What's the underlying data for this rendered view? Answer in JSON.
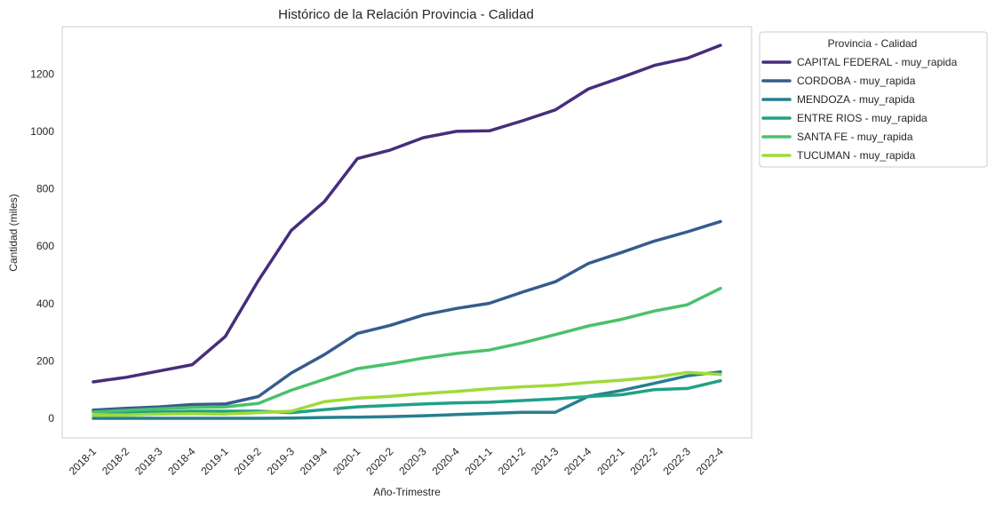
{
  "chart_data": {
    "type": "line",
    "title": "Histórico de la Relación Provincia - Calidad",
    "xlabel": "Año-Trimestre",
    "ylabel": "Cantidad (miles)",
    "categories": [
      "2018-1",
      "2018-2",
      "2018-3",
      "2018-4",
      "2019-1",
      "2019-2",
      "2019-3",
      "2019-4",
      "2020-1",
      "2020-2",
      "2020-3",
      "2020-4",
      "2021-1",
      "2021-2",
      "2021-3",
      "2021-4",
      "2022-1",
      "2022-2",
      "2022-3",
      "2022-4"
    ],
    "yticks": [
      0,
      200,
      400,
      600,
      800,
      1000,
      1200
    ],
    "ylim": [
      -68,
      1365
    ],
    "grid": false,
    "legend_placement": "outside-top-right",
    "legend_title": "Provincia - Calidad",
    "series": [
      {
        "name": "CAPITAL FEDERAL - muy_rapida",
        "color": "#472d7b",
        "values": [
          127,
          143,
          165,
          187,
          285,
          480,
          655,
          755,
          905,
          935,
          978,
          1000,
          1002,
          1037,
          1075,
          1148,
          1188,
          1230,
          1255,
          1300
        ]
      },
      {
        "name": "CORDOBA - muy_rapida",
        "color": "#365c8d",
        "values": [
          29,
          35,
          40,
          48,
          50,
          76,
          158,
          222,
          296,
          324,
          360,
          383,
          401,
          440,
          476,
          540,
          578,
          618,
          650,
          686
        ]
      },
      {
        "name": "MENDOZA - muy_rapida",
        "color": "#277f8e",
        "values": [
          0,
          0,
          0,
          0,
          0,
          0,
          1,
          3,
          4,
          6,
          9,
          13,
          17,
          21,
          21,
          77,
          97,
          122,
          148,
          162
        ]
      },
      {
        "name": "ENTRE RIOS - muy_rapida",
        "color": "#1fa187",
        "values": [
          22,
          22,
          22,
          25,
          25,
          25,
          20,
          30,
          40,
          45,
          50,
          54,
          56,
          62,
          68,
          76,
          82,
          100,
          104,
          131
        ]
      },
      {
        "name": "SANTA FE - muy_rapida",
        "color": "#4ac16d",
        "values": [
          22,
          28,
          33,
          38,
          40,
          52,
          98,
          136,
          173,
          190,
          210,
          226,
          238,
          263,
          292,
          322,
          345,
          374,
          396,
          453
        ]
      },
      {
        "name": "TUCUMAN - muy_rapida",
        "color": "#a0da39",
        "values": [
          10,
          12,
          15,
          16,
          15,
          20,
          25,
          58,
          70,
          77,
          86,
          94,
          103,
          110,
          115,
          125,
          133,
          143,
          160,
          153
        ]
      }
    ]
  }
}
